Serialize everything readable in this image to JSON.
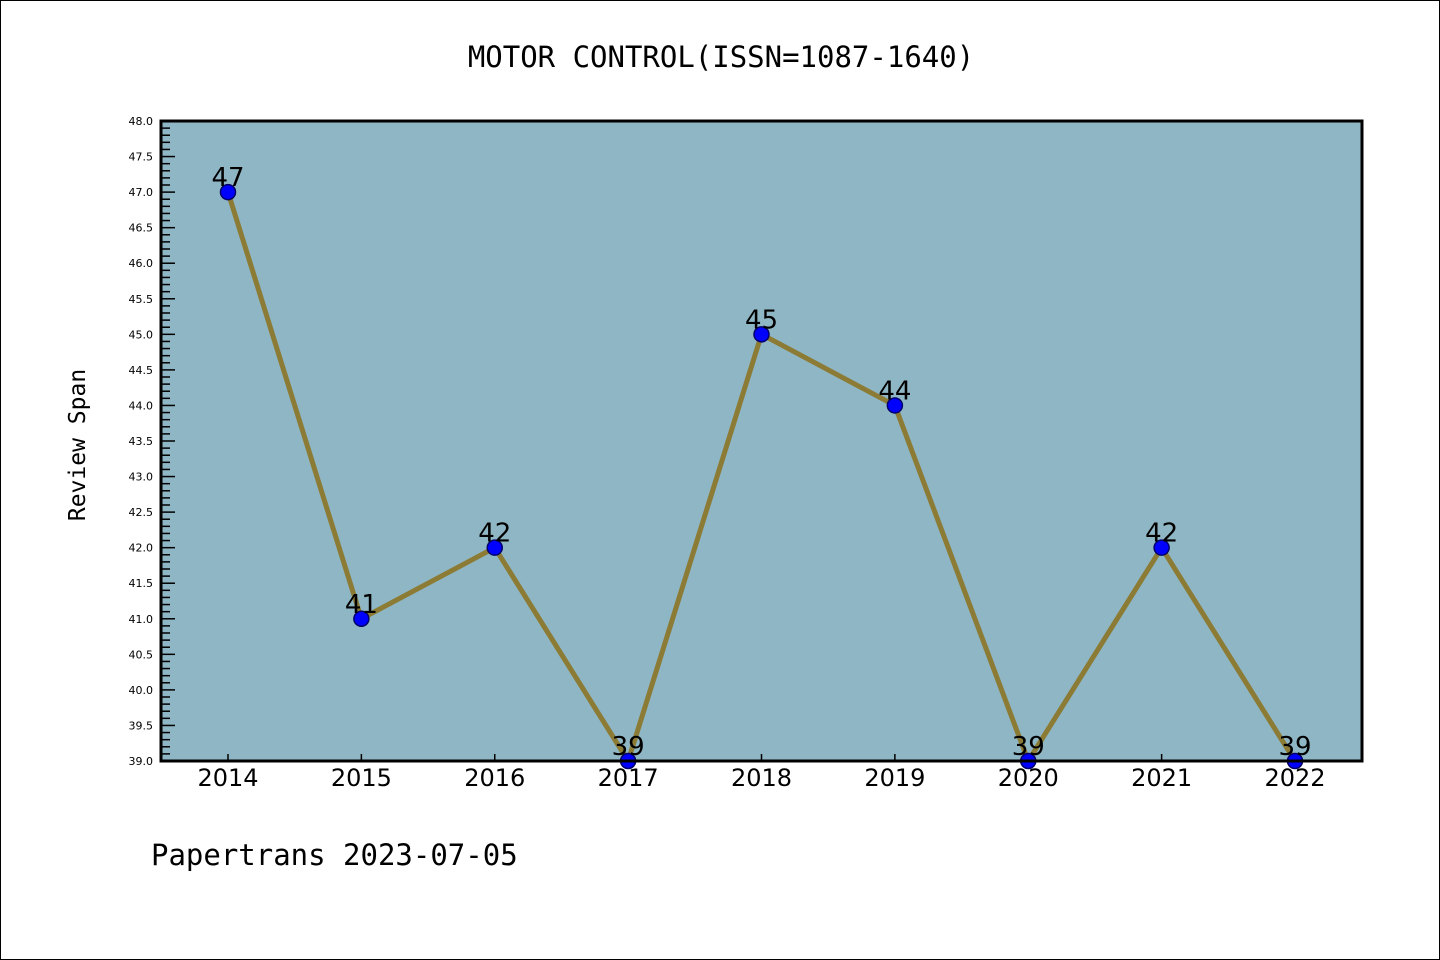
{
  "chart_data": {
    "type": "line",
    "title": "MOTOR CONTROL(ISSN=1087-1640)",
    "xlabel": "",
    "ylabel": "Review Span",
    "x": [
      "2014",
      "2015",
      "2016",
      "2017",
      "2018",
      "2019",
      "2020",
      "2021",
      "2022"
    ],
    "series": [
      {
        "name": "Review Span",
        "values": [
          47,
          41,
          42,
          39,
          45,
          44,
          39,
          42,
          39
        ]
      }
    ],
    "ylim": [
      39,
      48
    ],
    "yticks": [
      "39.0",
      "39.5",
      "40.0",
      "40.5",
      "41.0",
      "41.5",
      "42.0",
      "42.5",
      "43.0",
      "43.5",
      "44.0",
      "44.5",
      "45.0",
      "45.5",
      "46.0",
      "46.5",
      "47.0",
      "47.5",
      "48.0"
    ],
    "grid": false,
    "footer": "Papertrans 2023-07-05",
    "colors": {
      "plot_bg": "#8fb6c4",
      "line": "#8c7b35",
      "marker": "#0000ff"
    }
  }
}
